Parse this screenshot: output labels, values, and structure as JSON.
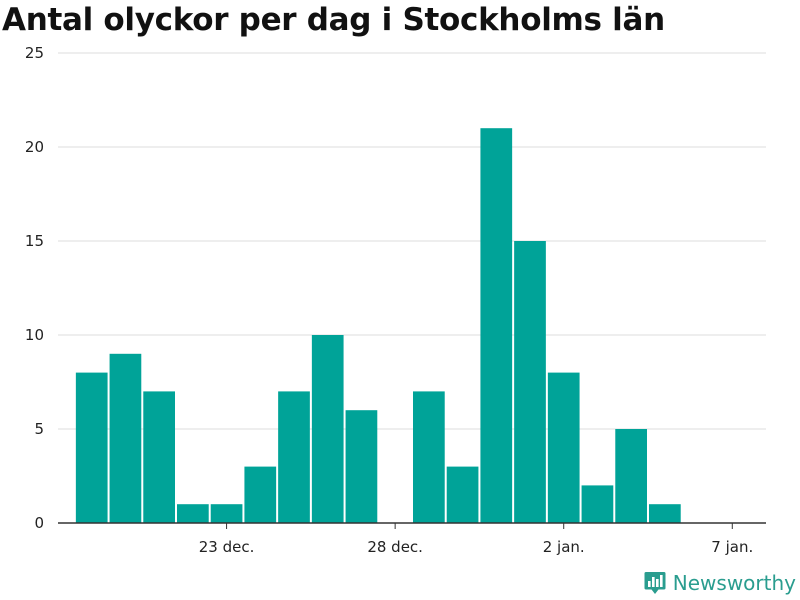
{
  "chart_data": {
    "type": "bar",
    "title": "Antal olyckor per dag i Stockholms län",
    "xlabel": "",
    "ylabel": "",
    "ylim": [
      0,
      25
    ],
    "yticks": [
      0,
      5,
      10,
      15,
      20,
      25
    ],
    "xlim": [
      "2021-12-18",
      "2022-01-08"
    ],
    "xticks": [
      {
        "date": "2021-12-23",
        "label": "23 dec."
      },
      {
        "date": "2021-12-28",
        "label": "28 dec."
      },
      {
        "date": "2022-01-02",
        "label": "2 jan."
      },
      {
        "date": "2022-01-07",
        "label": "7 jan."
      }
    ],
    "grid": true,
    "bar_color": "#00a398",
    "bars": [
      {
        "date": "2021-12-19",
        "value": 8
      },
      {
        "date": "2021-12-20",
        "value": 9
      },
      {
        "date": "2021-12-21",
        "value": 7
      },
      {
        "date": "2021-12-22",
        "value": 1
      },
      {
        "date": "2021-12-23",
        "value": 1
      },
      {
        "date": "2021-12-24",
        "value": 3
      },
      {
        "date": "2021-12-25",
        "value": 7
      },
      {
        "date": "2021-12-26",
        "value": 10
      },
      {
        "date": "2021-12-27",
        "value": 6
      },
      {
        "date": "2021-12-28",
        "value": 0
      },
      {
        "date": "2021-12-29",
        "value": 7
      },
      {
        "date": "2021-12-30",
        "value": 3
      },
      {
        "date": "2021-12-31",
        "value": 21
      },
      {
        "date": "2022-01-01",
        "value": 15
      },
      {
        "date": "2022-01-02",
        "value": 8
      },
      {
        "date": "2022-01-03",
        "value": 2
      },
      {
        "date": "2022-01-04",
        "value": 5
      },
      {
        "date": "2022-01-05",
        "value": 1
      }
    ]
  },
  "brand": {
    "name": "Newsworthy",
    "color": "#2a9d8f",
    "icon": "bar-chart-pin-icon"
  }
}
